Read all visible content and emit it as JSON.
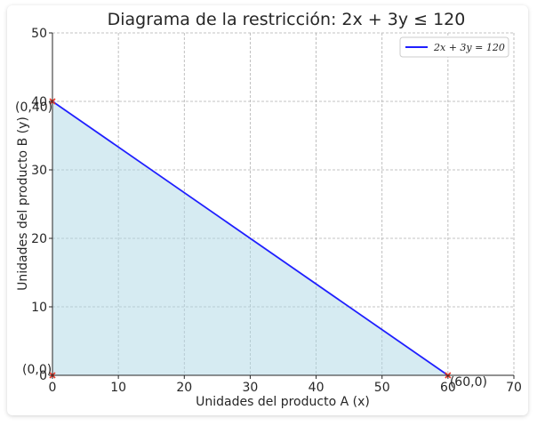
{
  "chart_data": {
    "type": "area",
    "title": "Diagrama de la restricción: 2x + 3y ≤ 120",
    "xlabel": "Unidades del producto A (x)",
    "ylabel": "Unidades del producto B (y)",
    "xlim": [
      0,
      70
    ],
    "ylim": [
      0,
      50
    ],
    "xticks": [
      0,
      10,
      20,
      30,
      40,
      50,
      60,
      70
    ],
    "yticks": [
      0,
      10,
      20,
      30,
      40,
      50
    ],
    "xtick_labels": [
      "0",
      "10",
      "20",
      "30",
      "40",
      "50",
      "60",
      "70"
    ],
    "ytick_labels": [
      "0",
      "10",
      "20",
      "30",
      "40",
      "50"
    ],
    "grid": true,
    "legend_position": "top-right",
    "series": [
      {
        "name": "2x + 3y = 120",
        "type": "line",
        "color": "#1f1fff",
        "x": [
          0,
          60
        ],
        "y": [
          40,
          0
        ]
      }
    ],
    "fill_region": {
      "x": [
        0,
        60,
        0
      ],
      "y": [
        40,
        0,
        0
      ],
      "color": "#add8e6"
    },
    "points": [
      {
        "label": "(0,40)",
        "x": 0,
        "y": 40
      },
      {
        "label": "(60,0)",
        "x": 60,
        "y": 0
      },
      {
        "label": "(0,0)",
        "x": 0,
        "y": 0
      }
    ],
    "point_color": "#e8392a"
  }
}
